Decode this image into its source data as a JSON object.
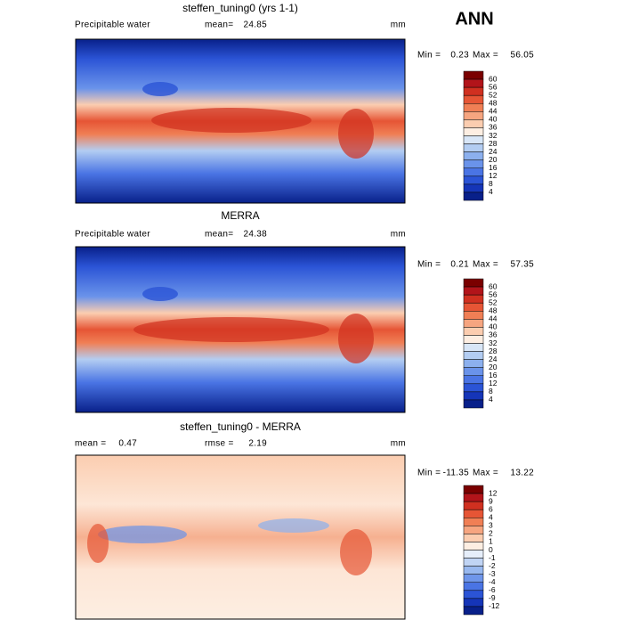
{
  "header": {
    "title": "ANN"
  },
  "panels": [
    {
      "title": "steffen_tuning0 (yrs 1-1)",
      "field": "Precipitable water",
      "stats": [
        {
          "label": "mean=",
          "value": 24.85
        }
      ],
      "units": "mm",
      "min_label": "Min =",
      "min": 0.23,
      "max_label": "Max =",
      "max": 56.05,
      "colorbar": {
        "levels": [
          60,
          56,
          52,
          48,
          44,
          40,
          36,
          32,
          28,
          24,
          20,
          16,
          12,
          8,
          4
        ],
        "colors": [
          "#7a0000",
          "#b2141a",
          "#d03020",
          "#e65535",
          "#f07f55",
          "#f6a580",
          "#fbcdb0",
          "#fdeee2",
          "#d8e6f7",
          "#b3cdf2",
          "#8cb0ee",
          "#6a93ea",
          "#4a74e4",
          "#2b54d6",
          "#1535b8",
          "#08208a"
        ]
      }
    },
    {
      "title": "MERRA",
      "field": "Precipitable water",
      "stats": [
        {
          "label": "mean=",
          "value": 24.38
        }
      ],
      "units": "mm",
      "min_label": "Min =",
      "min": 0.21,
      "max_label": "Max =",
      "max": 57.35,
      "colorbar": {
        "levels": [
          60,
          56,
          52,
          48,
          44,
          40,
          36,
          32,
          28,
          24,
          20,
          16,
          12,
          8,
          4
        ],
        "colors": [
          "#7a0000",
          "#b2141a",
          "#d03020",
          "#e65535",
          "#f07f55",
          "#f6a580",
          "#fbcdb0",
          "#fdeee2",
          "#d8e6f7",
          "#b3cdf2",
          "#8cb0ee",
          "#6a93ea",
          "#4a74e4",
          "#2b54d6",
          "#1535b8",
          "#08208a"
        ]
      }
    },
    {
      "title": "steffen_tuning0 - MERRA",
      "stats": [
        {
          "label": "mean =",
          "value": 0.47
        },
        {
          "label": "rmse =",
          "value": 2.19
        }
      ],
      "units": "mm",
      "min_label": "Min =",
      "min": -11.35,
      "max_label": "Max =",
      "max": 13.22,
      "colorbar": {
        "levels": [
          12,
          9,
          6,
          4,
          3,
          2,
          1,
          0,
          -1,
          -2,
          -3,
          -4,
          -6,
          -9,
          -12
        ],
        "colors": [
          "#7a0000",
          "#b2141a",
          "#d03020",
          "#e65535",
          "#f07f55",
          "#f6a580",
          "#fbcdb0",
          "#fdeee2",
          "#e6eefa",
          "#c0d4f4",
          "#98b8ef",
          "#6f96ea",
          "#4a74e4",
          "#2b54d6",
          "#1535b8",
          "#08208a"
        ]
      }
    }
  ]
}
